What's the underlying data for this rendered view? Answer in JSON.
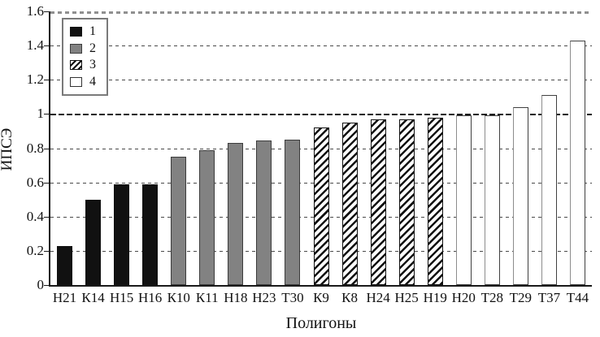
{
  "chart_data": {
    "type": "bar",
    "title": "",
    "ylabel": "ИПСЭ",
    "xlabel": "Полигоны",
    "ylim": [
      0,
      1.6
    ],
    "grid": "horizontal-dashed",
    "reference_line": 1,
    "yticks": [
      {
        "value": 0,
        "label": "0"
      },
      {
        "value": 0.2,
        "label": "0.2"
      },
      {
        "value": 0.4,
        "label": "0.4"
      },
      {
        "value": 0.6,
        "label": "0.6"
      },
      {
        "value": 0.8,
        "label": "0.8"
      },
      {
        "value": 1,
        "label": "1"
      },
      {
        "value": 1.2,
        "label": "1.2"
      },
      {
        "value": 1.4,
        "label": "1.4"
      },
      {
        "value": 1.6,
        "label": "1.6"
      }
    ],
    "categories": [
      "Н21",
      "К14",
      "Н15",
      "Н16",
      "К10",
      "К11",
      "Н18",
      "Н23",
      "Т30",
      "К9",
      "К8",
      "Н24",
      "Н25",
      "Н19",
      "Н20",
      "Т28",
      "Т29",
      "Т37",
      "Т44"
    ],
    "values": [
      0.23,
      0.5,
      0.59,
      0.59,
      0.75,
      0.79,
      0.83,
      0.845,
      0.85,
      0.92,
      0.95,
      0.97,
      0.97,
      0.98,
      0.99,
      0.99,
      1.04,
      1.11,
      1.43
    ],
    "groups": [
      1,
      1,
      1,
      1,
      2,
      2,
      2,
      2,
      2,
      3,
      3,
      3,
      3,
      3,
      4,
      4,
      4,
      4,
      4
    ],
    "legend": {
      "position": "top-left",
      "entries": [
        {
          "label": "1",
          "swatch": "solid-black"
        },
        {
          "label": "2",
          "swatch": "solid-gray"
        },
        {
          "label": "3",
          "swatch": "diagonal-hatch"
        },
        {
          "label": "4",
          "swatch": "white"
        }
      ]
    },
    "colors": {
      "bar_black": "#111111",
      "bar_gray": "#828282",
      "hatch_stroke": "#101010",
      "bar_white": "#ffffff",
      "axis": "#1a1a1a",
      "gridline": "#4a4a4a",
      "top_gridline": "#909090"
    }
  }
}
